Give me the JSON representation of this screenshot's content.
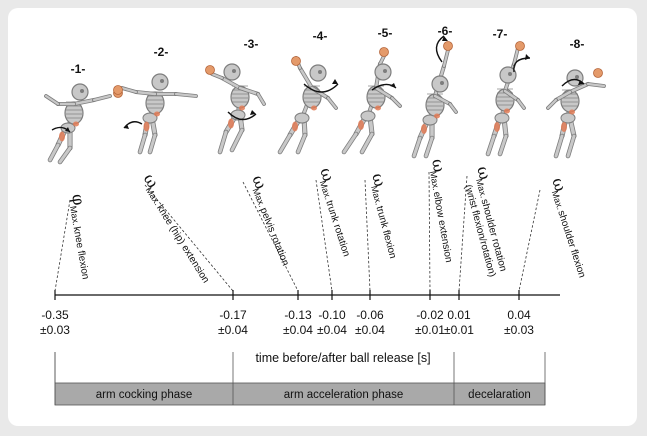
{
  "frames": [
    "-1-",
    "-2-",
    "-3-",
    "-4-",
    "-5-",
    "-6-",
    "-7-",
    "-8-"
  ],
  "events": [
    {
      "symbol": "φ",
      "sub": "Max.",
      "text": "knee flexion",
      "time": "-0.35",
      "sd": "±0.03"
    },
    {
      "symbol": "ω",
      "sub": "Max.",
      "text": "knee (hip) extension",
      "time": "-0.17",
      "sd": "±0.04"
    },
    {
      "symbol": "ω",
      "sub": "Max.",
      "text": "pelvis rotation",
      "time": "-0.13",
      "sd": "±0.04"
    },
    {
      "symbol": "ω",
      "sub": "Max.",
      "text": "trunk rotation",
      "time": "-0.10",
      "sd": "±0.04"
    },
    {
      "symbol": "ω",
      "sub": "Max.",
      "text": "trunk flexion",
      "time": "-0.06",
      "sd": "±0.04"
    },
    {
      "symbol": "ω",
      "sub": "Max.",
      "text": "elbow extension",
      "time": "-0.02",
      "sd": "±0.01"
    },
    {
      "symbol": "ω",
      "sub": "Max.",
      "text": "shoulder rotation",
      "text2": "(wrist flexion/rotation)",
      "time": "0.01",
      "sd": "±0.01"
    },
    {
      "symbol": "ω",
      "sub": "Max.",
      "text": "shoulder flexion",
      "time": "0.04",
      "sd": "±0.03"
    }
  ],
  "axis_title": "time before/after ball release [s]",
  "phases": [
    "arm cocking phase",
    "arm acceleration phase",
    "decelaration"
  ],
  "colors": {
    "phase_fill": "#a9a9a9",
    "bone": "#c8c8c8",
    "bone_dark": "#7d7d7d",
    "muscle": "#e07a55",
    "ball": "#e49a6a"
  }
}
